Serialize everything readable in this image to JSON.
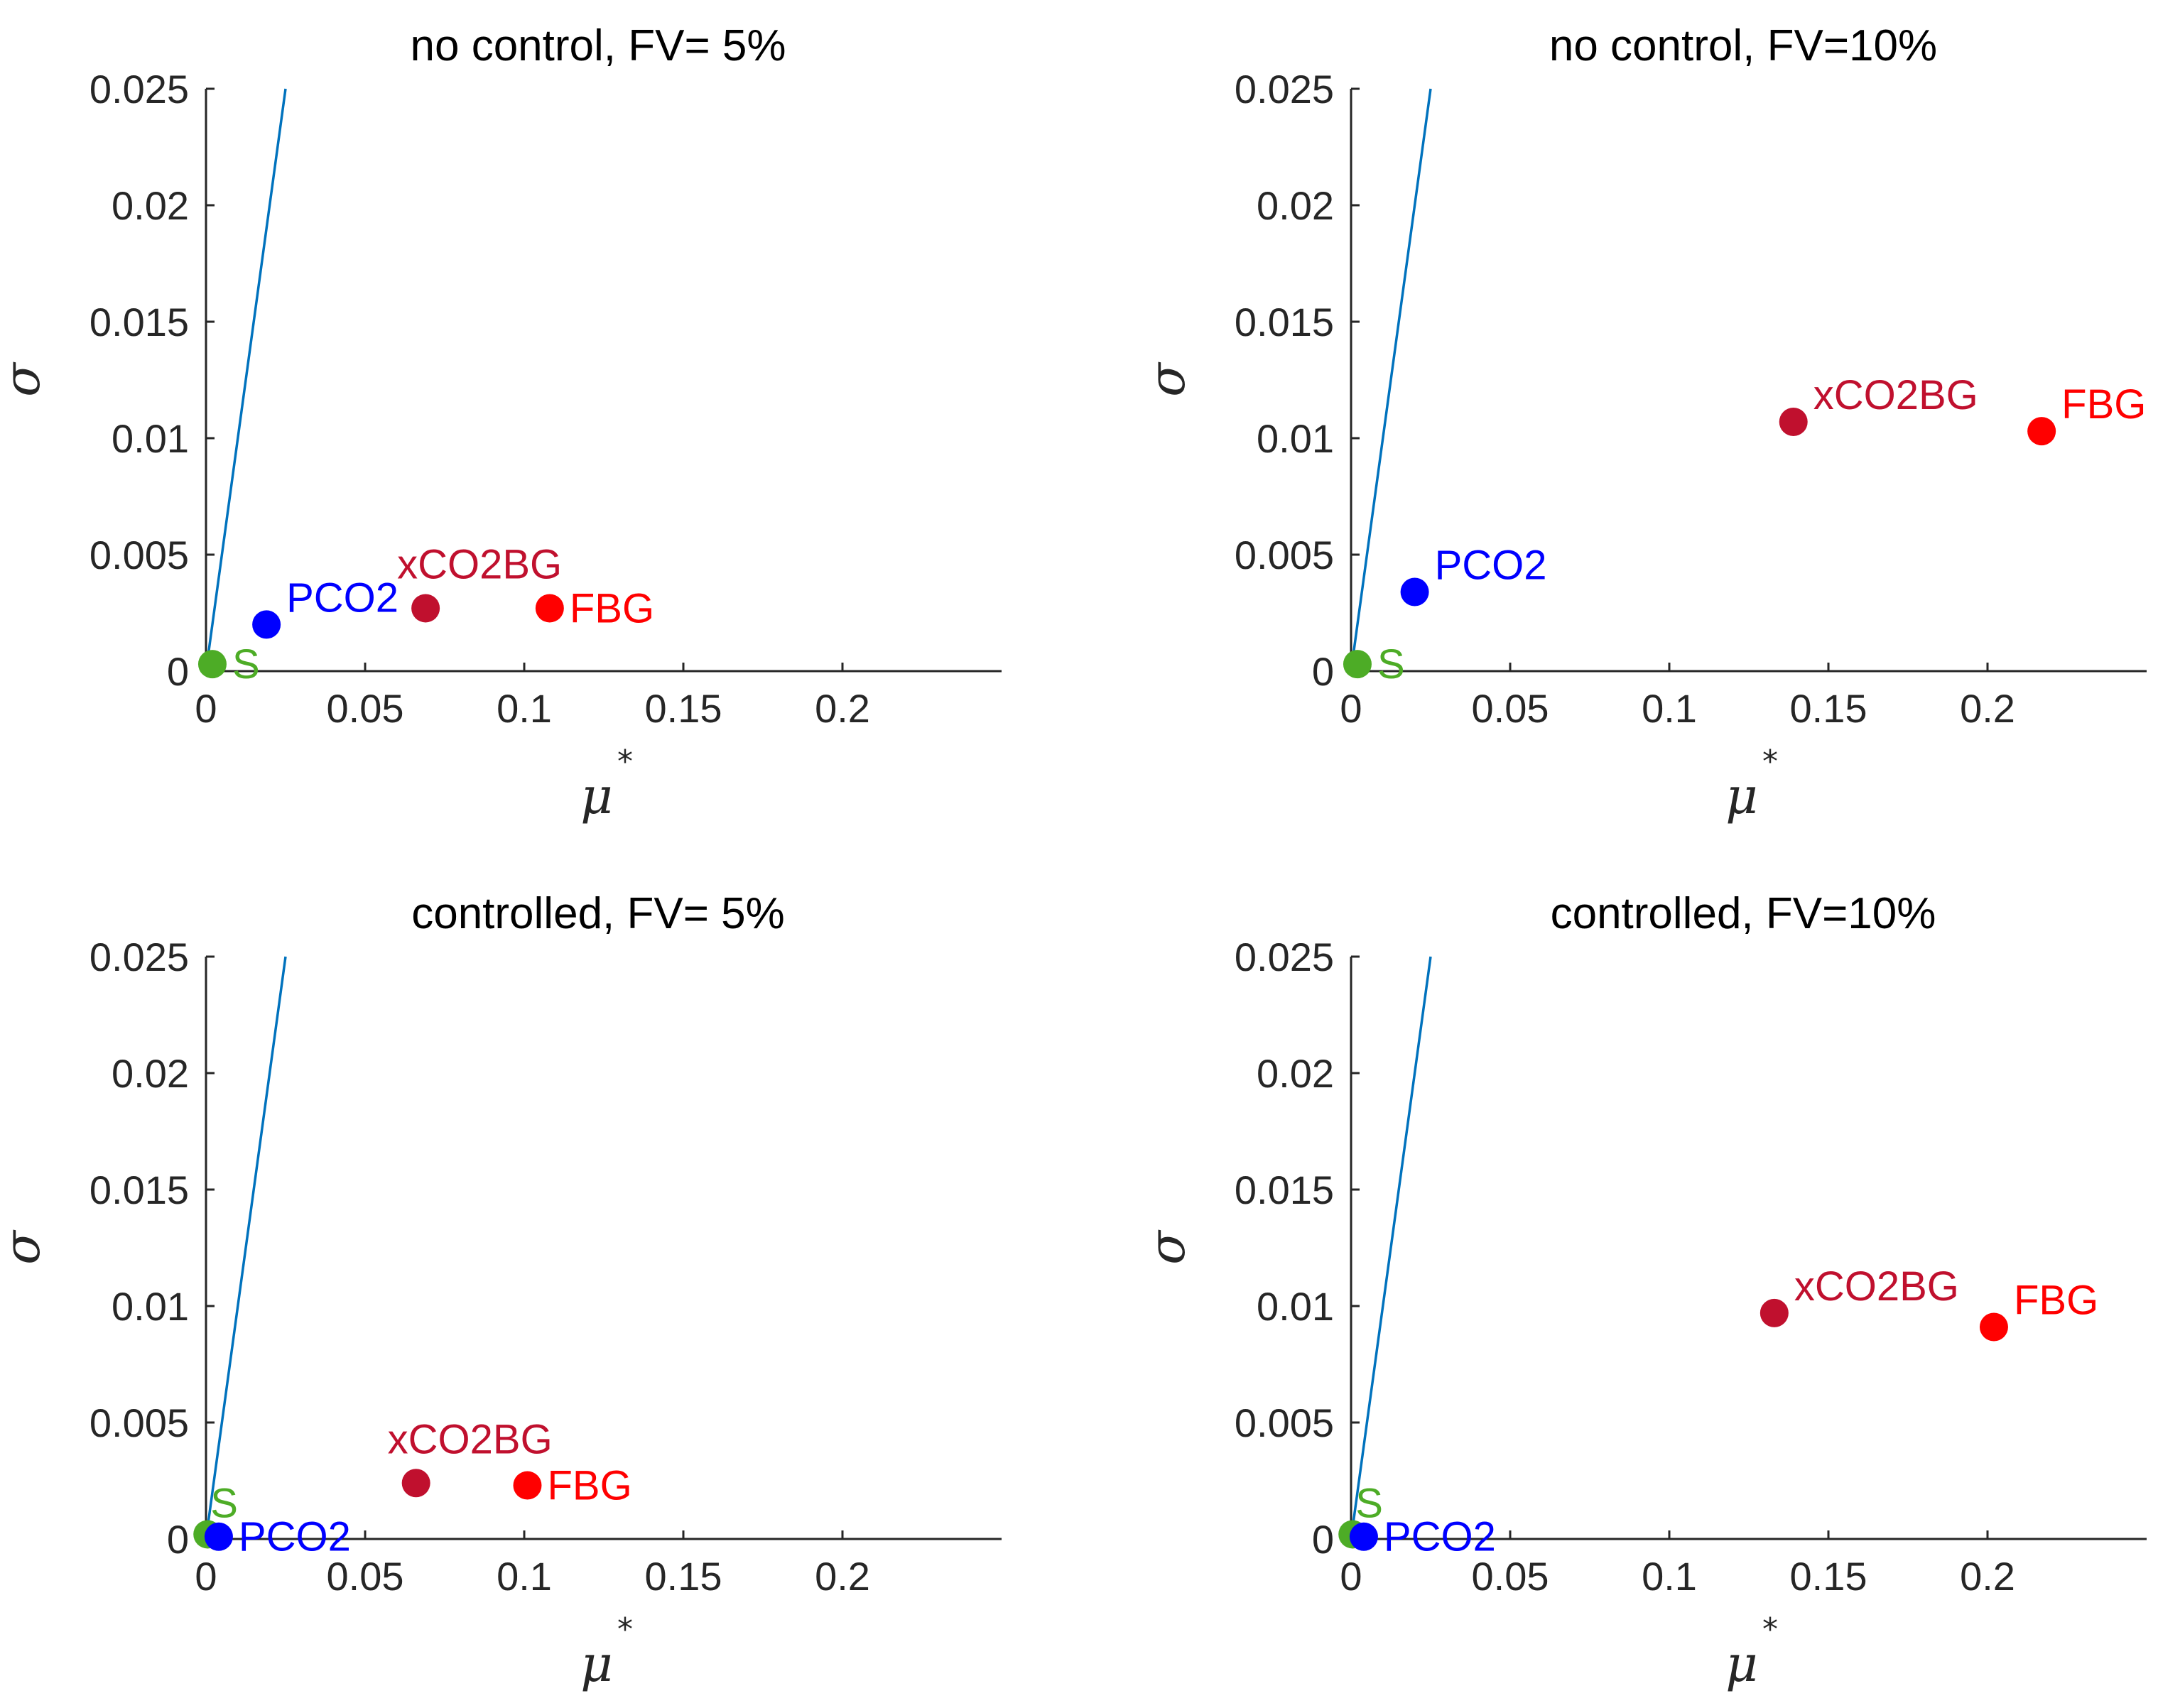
{
  "chart_data": [
    {
      "type": "scatter",
      "title": "no control, FV= 5%",
      "xlabel": "μ",
      "xlabel_sup": "*",
      "ylabel": "σ",
      "xlim": [
        0,
        0.25
      ],
      "ylim": [
        0,
        0.025
      ],
      "xticks": [
        "0",
        "0.05",
        "0.1",
        "0.15",
        "0.2"
      ],
      "yticks": [
        "0",
        "0.005",
        "0.01",
        "0.015",
        "0.02",
        "0.025"
      ],
      "reference_line": {
        "x": [
          0,
          0.025
        ],
        "y": [
          0,
          0.025
        ],
        "color": "#0072bd"
      },
      "points": [
        {
          "label": "S",
          "x": 0.002,
          "y": 0.0003,
          "color": "#4dac26",
          "label_pos": "right"
        },
        {
          "label": "PCO2",
          "x": 0.019,
          "y": 0.002,
          "color": "#0000ff",
          "label_pos": "above-right"
        },
        {
          "label": "xCO2BG",
          "x": 0.069,
          "y": 0.0027,
          "color": "#c0102e",
          "label_pos": "above"
        },
        {
          "label": "FBG",
          "x": 0.108,
          "y": 0.0027,
          "color": "#ff0000",
          "label_pos": "right"
        }
      ]
    },
    {
      "type": "scatter",
      "title": "no control, FV=10%",
      "xlabel": "μ",
      "xlabel_sup": "*",
      "ylabel": "σ",
      "xlim": [
        0,
        0.25
      ],
      "ylim": [
        0,
        0.025
      ],
      "xticks": [
        "0",
        "0.05",
        "0.1",
        "0.15",
        "0.2"
      ],
      "yticks": [
        "0",
        "0.005",
        "0.01",
        "0.015",
        "0.02",
        "0.025"
      ],
      "reference_line": {
        "x": [
          0,
          0.025
        ],
        "y": [
          0,
          0.025
        ],
        "color": "#0072bd"
      },
      "points": [
        {
          "label": "S",
          "x": 0.002,
          "y": 0.0003,
          "color": "#4dac26",
          "label_pos": "right"
        },
        {
          "label": "PCO2",
          "x": 0.02,
          "y": 0.0034,
          "color": "#0000ff",
          "label_pos": "above-right"
        },
        {
          "label": "xCO2BG",
          "x": 0.139,
          "y": 0.0107,
          "color": "#c0102e",
          "label_pos": "above-right"
        },
        {
          "label": "FBG",
          "x": 0.217,
          "y": 0.0103,
          "color": "#ff0000",
          "label_pos": "above-right"
        }
      ]
    },
    {
      "type": "scatter",
      "title": "controlled, FV= 5%",
      "xlabel": "μ",
      "xlabel_sup": "*",
      "ylabel": "σ",
      "xlim": [
        0,
        0.25
      ],
      "ylim": [
        0,
        0.025
      ],
      "xticks": [
        "0",
        "0.05",
        "0.1",
        "0.15",
        "0.2"
      ],
      "yticks": [
        "0",
        "0.005",
        "0.01",
        "0.015",
        "0.02",
        "0.025"
      ],
      "reference_line": {
        "x": [
          0,
          0.025
        ],
        "y": [
          0,
          0.025
        ],
        "color": "#0072bd"
      },
      "points": [
        {
          "label": "S",
          "x": 0.0005,
          "y": 0.0002,
          "color": "#4dac26",
          "label_pos": "above"
        },
        {
          "label": "PCO2",
          "x": 0.004,
          "y": 0.0001,
          "color": "#0000ff",
          "label_pos": "right"
        },
        {
          "label": "xCO2BG",
          "x": 0.066,
          "y": 0.0024,
          "color": "#c0102e",
          "label_pos": "above"
        },
        {
          "label": "FBG",
          "x": 0.101,
          "y": 0.0023,
          "color": "#ff0000",
          "label_pos": "right"
        }
      ]
    },
    {
      "type": "scatter",
      "title": "controlled, FV=10%",
      "xlabel": "μ",
      "xlabel_sup": "*",
      "ylabel": "σ",
      "xlim": [
        0,
        0.25
      ],
      "ylim": [
        0,
        0.025
      ],
      "xticks": [
        "0",
        "0.05",
        "0.1",
        "0.15",
        "0.2"
      ],
      "yticks": [
        "0",
        "0.005",
        "0.01",
        "0.015",
        "0.02",
        "0.025"
      ],
      "reference_line": {
        "x": [
          0,
          0.025
        ],
        "y": [
          0,
          0.025
        ],
        "color": "#0072bd"
      },
      "points": [
        {
          "label": "S",
          "x": 0.0005,
          "y": 0.0002,
          "color": "#4dac26",
          "label_pos": "above"
        },
        {
          "label": "PCO2",
          "x": 0.004,
          "y": 0.0001,
          "color": "#0000ff",
          "label_pos": "right"
        },
        {
          "label": "xCO2BG",
          "x": 0.133,
          "y": 0.0097,
          "color": "#c0102e",
          "label_pos": "above-right"
        },
        {
          "label": "FBG",
          "x": 0.202,
          "y": 0.0091,
          "color": "#ff0000",
          "label_pos": "above-right"
        }
      ]
    }
  ]
}
